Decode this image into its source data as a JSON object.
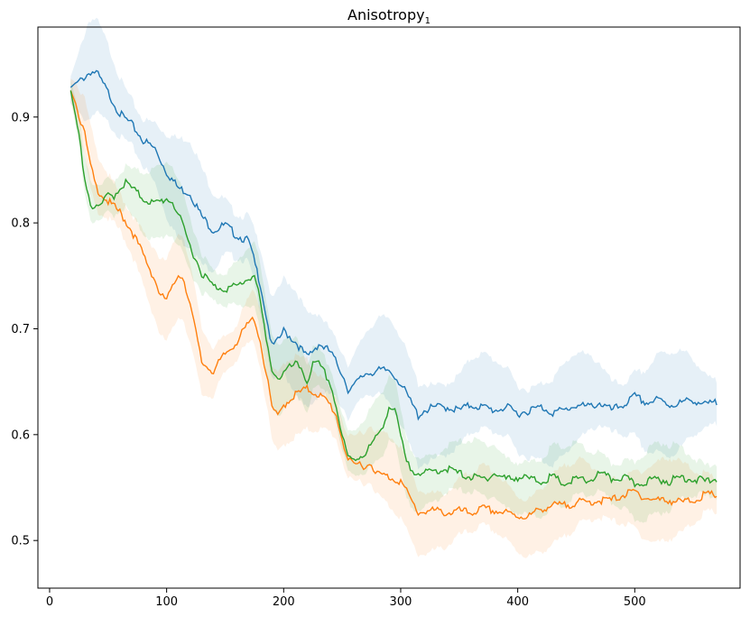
{
  "chart_data": {
    "type": "line",
    "title": "Anisotropy",
    "title_subscript": "1",
    "xlabel": "",
    "ylabel": "",
    "xlim": [
      -10,
      590
    ],
    "ylim": [
      0.455,
      0.985
    ],
    "xticks": [
      0,
      100,
      200,
      300,
      400,
      500
    ],
    "yticks": [
      0.5,
      0.6,
      0.7,
      0.8,
      0.9
    ],
    "xtick_labels": [
      "0",
      "100",
      "200",
      "300",
      "400",
      "500"
    ],
    "ytick_labels": [
      "0.5",
      "0.6",
      "0.7",
      "0.8",
      "0.9"
    ],
    "grid": false,
    "legend": "none",
    "series": [
      {
        "name": "blue",
        "color": "#1f77b4",
        "band_spread": 0.05,
        "x": [
          18,
          25,
          35,
          40,
          50,
          60,
          70,
          80,
          90,
          100,
          110,
          120,
          130,
          140,
          150,
          160,
          170,
          180,
          185,
          190,
          195,
          200,
          205,
          210,
          220,
          230,
          240,
          250,
          255,
          260,
          270,
          280,
          290,
          295,
          300,
          305,
          310,
          315,
          320,
          330,
          340,
          350,
          360,
          370,
          380,
          390,
          400,
          410,
          420,
          430,
          440,
          450,
          460,
          470,
          480,
          490,
          500,
          510,
          520,
          530,
          540,
          550,
          560,
          570
        ],
        "values": [
          0.928,
          0.935,
          0.945,
          0.944,
          0.925,
          0.905,
          0.895,
          0.88,
          0.872,
          0.85,
          0.835,
          0.83,
          0.808,
          0.795,
          0.8,
          0.79,
          0.785,
          0.745,
          0.715,
          0.685,
          0.69,
          0.7,
          0.695,
          0.69,
          0.675,
          0.688,
          0.68,
          0.66,
          0.645,
          0.648,
          0.66,
          0.662,
          0.663,
          0.658,
          0.65,
          0.64,
          0.63,
          0.62,
          0.625,
          0.628,
          0.628,
          0.625,
          0.63,
          0.628,
          0.625,
          0.628,
          0.622,
          0.625,
          0.628,
          0.623,
          0.625,
          0.63,
          0.628,
          0.632,
          0.625,
          0.63,
          0.638,
          0.632,
          0.635,
          0.63,
          0.632,
          0.635,
          0.63,
          0.632
        ]
      },
      {
        "name": "orange",
        "color": "#ff7f0e",
        "band_spread": 0.04,
        "x": [
          18,
          25,
          30,
          35,
          40,
          50,
          60,
          70,
          80,
          90,
          95,
          100,
          105,
          110,
          115,
          120,
          125,
          130,
          140,
          150,
          160,
          170,
          175,
          180,
          185,
          190,
          195,
          200,
          210,
          220,
          230,
          240,
          245,
          250,
          255,
          260,
          265,
          270,
          275,
          280,
          290,
          300,
          305,
          310,
          315,
          320,
          330,
          340,
          350,
          360,
          370,
          380,
          390,
          400,
          410,
          420,
          430,
          440,
          450,
          460,
          470,
          480,
          490,
          500,
          510,
          520,
          530,
          540,
          550,
          560,
          570
        ],
        "values": [
          0.925,
          0.905,
          0.885,
          0.855,
          0.835,
          0.822,
          0.812,
          0.795,
          0.772,
          0.748,
          0.732,
          0.73,
          0.74,
          0.755,
          0.748,
          0.725,
          0.698,
          0.67,
          0.662,
          0.678,
          0.69,
          0.707,
          0.712,
          0.69,
          0.66,
          0.628,
          0.618,
          0.63,
          0.64,
          0.645,
          0.64,
          0.63,
          0.62,
          0.598,
          0.578,
          0.572,
          0.575,
          0.572,
          0.575,
          0.565,
          0.562,
          0.558,
          0.548,
          0.538,
          0.528,
          0.53,
          0.53,
          0.528,
          0.53,
          0.528,
          0.532,
          0.53,
          0.528,
          0.525,
          0.525,
          0.532,
          0.535,
          0.535,
          0.538,
          0.538,
          0.54,
          0.54,
          0.545,
          0.548,
          0.542,
          0.54,
          0.54,
          0.538,
          0.54,
          0.545,
          0.545
        ]
      },
      {
        "name": "green",
        "color": "#2ca02c",
        "band_spread": 0.035,
        "x": [
          18,
          25,
          30,
          35,
          40,
          45,
          50,
          55,
          60,
          65,
          70,
          80,
          90,
          100,
          105,
          110,
          115,
          120,
          130,
          140,
          150,
          160,
          170,
          175,
          180,
          185,
          190,
          195,
          200,
          205,
          210,
          215,
          220,
          225,
          230,
          235,
          240,
          245,
          250,
          255,
          260,
          270,
          280,
          285,
          290,
          295,
          300,
          305,
          310,
          315,
          320,
          330,
          340,
          350,
          360,
          370,
          380,
          390,
          400,
          410,
          420,
          430,
          440,
          450,
          460,
          470,
          480,
          490,
          500,
          510,
          520,
          530,
          540,
          550,
          560,
          570
        ],
        "values": [
          0.925,
          0.885,
          0.845,
          0.82,
          0.815,
          0.82,
          0.828,
          0.828,
          0.835,
          0.84,
          0.835,
          0.825,
          0.82,
          0.825,
          0.822,
          0.81,
          0.795,
          0.78,
          0.755,
          0.742,
          0.74,
          0.742,
          0.75,
          0.752,
          0.728,
          0.69,
          0.665,
          0.655,
          0.66,
          0.665,
          0.668,
          0.665,
          0.652,
          0.668,
          0.668,
          0.66,
          0.65,
          0.628,
          0.6,
          0.58,
          0.578,
          0.585,
          0.6,
          0.612,
          0.628,
          0.625,
          0.6,
          0.575,
          0.568,
          0.568,
          0.565,
          0.568,
          0.57,
          0.565,
          0.562,
          0.56,
          0.565,
          0.56,
          0.562,
          0.56,
          0.558,
          0.562,
          0.555,
          0.56,
          0.558,
          0.565,
          0.56,
          0.562,
          0.555,
          0.558,
          0.56,
          0.558,
          0.562,
          0.56,
          0.558,
          0.56
        ]
      }
    ]
  }
}
